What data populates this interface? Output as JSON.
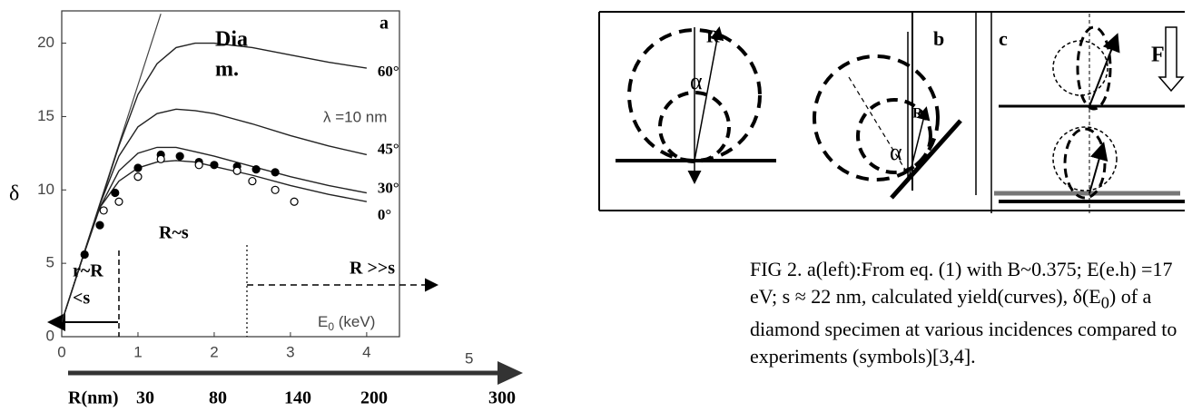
{
  "chart_data": {
    "type": "line",
    "panel_label": "a",
    "ylabel": "δ",
    "xlabel": [
      "E",
      "0",
      " (keV)"
    ],
    "xlim": [
      0,
      4.43
    ],
    "ylim": [
      0,
      22.2
    ],
    "xticks": [
      0,
      1,
      2,
      3,
      4
    ],
    "yticks": [
      0,
      5,
      10,
      15,
      20
    ],
    "x": [
      0,
      0.25,
      0.5,
      0.75,
      1,
      1.25,
      1.5,
      1.75,
      2,
      2.5,
      3,
      3.5,
      4
    ],
    "series": [
      {
        "name": "0°",
        "color": "#222",
        "values": [
          1,
          5,
          8.8,
          10.6,
          11.5,
          11.9,
          12,
          11.9,
          11.6,
          11,
          10.3,
          9.7,
          9.2
        ]
      },
      {
        "name": "30°",
        "color": "#222",
        "values": [
          1,
          5,
          8.8,
          11.3,
          12.5,
          12.9,
          12.9,
          12.6,
          12.3,
          11.6,
          10.9,
          10.3,
          9.8
        ]
      },
      {
        "name": "45°",
        "color": "#222",
        "values": [
          1,
          5,
          9,
          12.3,
          14.3,
          15.2,
          15.5,
          15.4,
          15.2,
          14.5,
          13.7,
          13,
          12.4
        ]
      },
      {
        "name": "60°",
        "color": "#222",
        "values": [
          1,
          5,
          9,
          13,
          16.5,
          18.6,
          19.7,
          20,
          20,
          19.7,
          19.2,
          18.7,
          18.3
        ]
      }
    ],
    "guide": {
      "color": "#444",
      "x": [
        0,
        1.3
      ],
      "values": [
        1,
        22
      ]
    },
    "points": [
      {
        "marker": "filled",
        "color": "#000",
        "x": [
          0.3,
          0.5,
          0.7,
          1.0,
          1.3,
          1.55,
          1.8,
          2.0,
          2.3,
          2.55,
          2.8
        ],
        "values": [
          5.6,
          7.6,
          9.8,
          11.5,
          12.4,
          12.3,
          11.9,
          11.7,
          11.6,
          11.4,
          11.2
        ]
      },
      {
        "marker": "open",
        "color": "#000",
        "x": [
          0.55,
          0.75,
          1.0,
          1.3,
          1.8,
          2.3,
          2.5,
          2.8,
          3.05
        ],
        "values": [
          8.6,
          9.2,
          10.9,
          12.1,
          11.7,
          11.3,
          10.6,
          10.0,
          9.2
        ]
      }
    ],
    "annotations": [
      "Dia",
      "m.",
      "λ =10 nm",
      "R~s",
      "r~R",
      "<s",
      "R >>s"
    ],
    "secondary_axis": {
      "label": "R(nm)",
      "ticks": [
        30,
        80,
        140,
        200,
        300
      ],
      "extra": 5
    }
  },
  "diagram": {
    "labels": [
      "R",
      "α",
      "b",
      "c",
      "α",
      "R",
      "F"
    ]
  },
  "caption": [
    "FIG 2. a(left):From eq. (1) with B~0.375; E(e.h) =17 eV; s ≈ 22 nm, calculated yield(curves), δ(E",
    "0",
    ") of a diamond specimen at various incidences compared to experiments (symbols)[3,4]."
  ]
}
